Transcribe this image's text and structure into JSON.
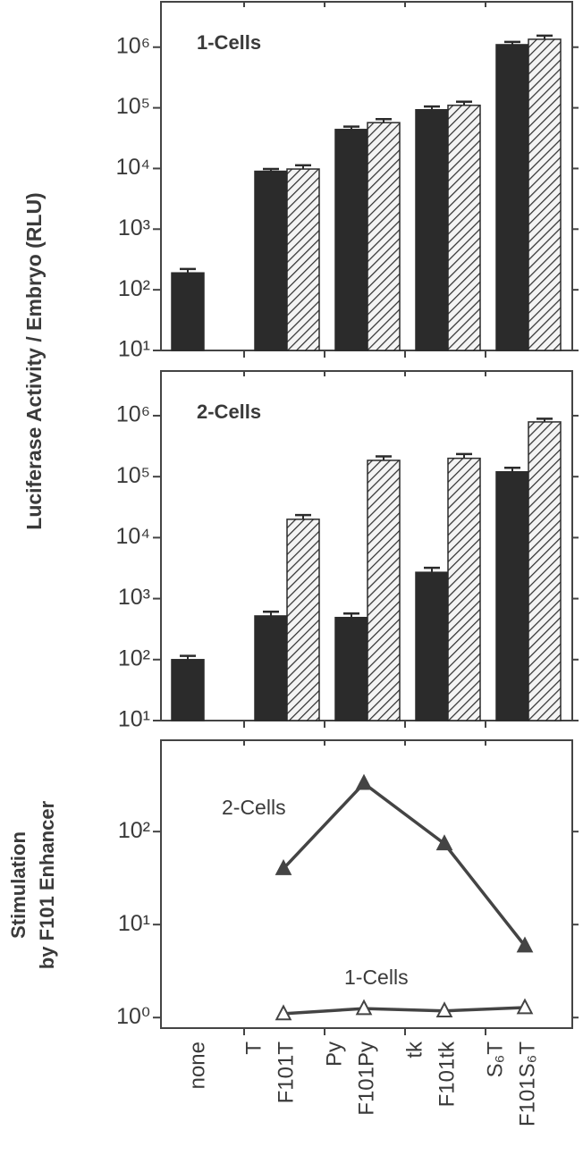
{
  "chart_data": [
    {
      "type": "bar",
      "title": "1-Cells",
      "y_label": "Luciferase Activity / Embryo (RLU)",
      "log_y": true,
      "ylim": [
        10,
        5600000
      ],
      "yticks": [
        {
          "value": 10,
          "label": "10¹"
        },
        {
          "value": 100,
          "label": "10²"
        },
        {
          "value": 1000,
          "label": "10³"
        },
        {
          "value": 10000,
          "label": "10⁴"
        },
        {
          "value": 100000,
          "label": "10⁵"
        },
        {
          "value": 1000000,
          "label": "10⁶"
        }
      ],
      "series": [
        {
          "color": "#2b2b2b",
          "values": [
            190,
            9000,
            null,
            44000,
            null,
            93000,
            null,
            1100000,
            null
          ],
          "errors": [
            30,
            800,
            null,
            5000,
            null,
            12000,
            null,
            120000,
            null
          ]
        },
        {
          "color": "#2b2b2b",
          "pattern": "hatch",
          "values": [
            null,
            null,
            9800,
            null,
            57000,
            null,
            110000,
            null,
            1350000
          ],
          "errors": [
            null,
            null,
            1500,
            null,
            8000,
            null,
            16000,
            null,
            200000
          ]
        }
      ]
    },
    {
      "type": "bar",
      "title": "2-Cells",
      "log_y": true,
      "ylim": [
        10,
        5400000
      ],
      "yticks": [
        {
          "value": 10,
          "label": "10¹"
        },
        {
          "value": 100,
          "label": "10²"
        },
        {
          "value": 1000,
          "label": "10³"
        },
        {
          "value": 10000,
          "label": "10⁴"
        },
        {
          "value": 100000,
          "label": "10⁵"
        },
        {
          "value": 1000000,
          "label": "10⁶"
        }
      ],
      "series": [
        {
          "color": "#2b2b2b",
          "values": [
            100,
            520,
            null,
            490,
            null,
            2700,
            null,
            120000,
            null
          ],
          "errors": [
            15,
            90,
            null,
            80,
            null,
            500,
            null,
            20000,
            null
          ]
        },
        {
          "color": "#2b2b2b",
          "pattern": "hatch",
          "values": [
            null,
            null,
            20000,
            null,
            185000,
            null,
            200000,
            null,
            790000
          ],
          "errors": [
            null,
            null,
            3500,
            null,
            30000,
            null,
            35000,
            null,
            100000
          ]
        }
      ]
    },
    {
      "type": "line",
      "y_label": [
        "Stimulation",
        "by F101 Enhancer"
      ],
      "log_y": true,
      "categories": [
        "none",
        "T",
        "F101T",
        "Py",
        "F101Py",
        "tk",
        "F101tk",
        "S₆T",
        "F101S₆T"
      ],
      "ylim": [
        0.77,
        960
      ],
      "yticks": [
        {
          "value": 1,
          "label": "10⁰"
        },
        {
          "value": 10,
          "label": "10¹"
        },
        {
          "value": 100,
          "label": "10²"
        }
      ],
      "series": [
        {
          "name": "2-Cells",
          "color": "#444444",
          "marker": "filled-triangle",
          "values": [
            null,
            null,
            40,
            null,
            330,
            null,
            74,
            null,
            5.9
          ]
        },
        {
          "name": "1-Cells",
          "color": "#444444",
          "marker": "open-triangle",
          "values": [
            null,
            null,
            1.1,
            null,
            1.25,
            null,
            1.18,
            null,
            1.28
          ]
        }
      ]
    }
  ]
}
